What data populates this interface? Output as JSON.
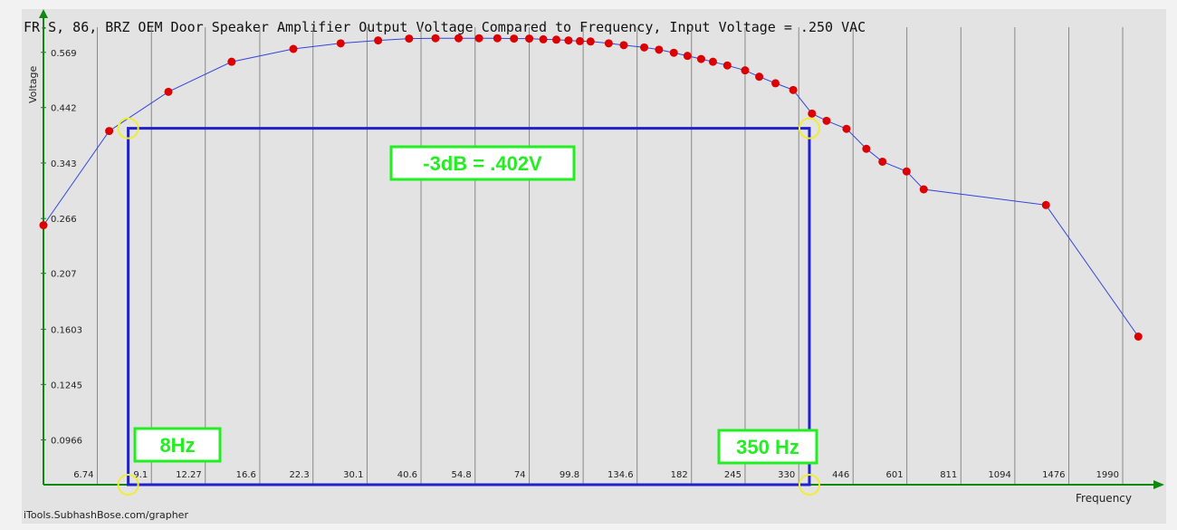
{
  "chart_data": {
    "type": "line",
    "title": "FR-S, 86, BRZ OEM Door Speaker Amplifier Output Voltage Compared to Frequency, Input Voltage = .250 VAC",
    "xlabel": "Frequency",
    "ylabel": "Voltage",
    "x_scale": "log",
    "y_scale": "log",
    "xlim": [
      5,
      2200
    ],
    "ylim": [
      0.0787,
      0.66
    ],
    "x_ticks": [
      "6.74",
      "9.1",
      "12.27",
      "16.6",
      "22.3",
      "30.1",
      "40.6",
      "54.8",
      "74",
      "99.8",
      "134.6",
      "182",
      "245",
      "330",
      "446",
      "601",
      "811",
      "1094",
      "1476",
      "1990"
    ],
    "y_ticks": [
      "0.569",
      "0.442",
      "0.343",
      "0.266",
      "0.207",
      "0.1603",
      "0.1245",
      "0.0966"
    ],
    "grid": "vertical",
    "series": [
      {
        "color": "#dd0000",
        "line_color": "#3344dd",
        "x": [
          5,
          7.2,
          10,
          14.2,
          20,
          26,
          32,
          38,
          44,
          50,
          56,
          62,
          68,
          74,
          80,
          86,
          92,
          98,
          104,
          115,
          125,
          140,
          152,
          165,
          178,
          192,
          205,
          222,
          245,
          265,
          290,
          320,
          355,
          385,
          430,
          480,
          525,
          600,
          660,
          1300,
          2170
        ],
        "values": [
          0.258,
          0.397,
          0.475,
          0.545,
          0.578,
          0.593,
          0.601,
          0.606,
          0.607,
          0.607,
          0.607,
          0.607,
          0.606,
          0.606,
          0.604,
          0.603,
          0.601,
          0.599,
          0.598,
          0.593,
          0.588,
          0.582,
          0.576,
          0.568,
          0.56,
          0.552,
          0.545,
          0.536,
          0.524,
          0.509,
          0.494,
          0.479,
          0.43,
          0.416,
          0.401,
          0.366,
          0.345,
          0.33,
          0.304,
          0.283,
          0.155
        ]
      }
    ],
    "annotations": [
      {
        "text": "-3dB = .402V",
        "voltage": 0.402
      },
      {
        "text": "8Hz",
        "frequency": 8
      },
      {
        "text": "350 Hz",
        "frequency": 350
      }
    ]
  },
  "footer": {
    "credit": "iTools.SubhashBose.com/grapher"
  },
  "colors": {
    "background": "#e3e3e3",
    "axis": "#118811",
    "grid": "#888888",
    "marker": "#dd0000",
    "curve": "#3344dd",
    "annotation_box": "#2222cc",
    "annotation_label_border": "#22ee22",
    "annotation_label_text": "#22ee22",
    "highlight_circle": "#eeee33"
  }
}
